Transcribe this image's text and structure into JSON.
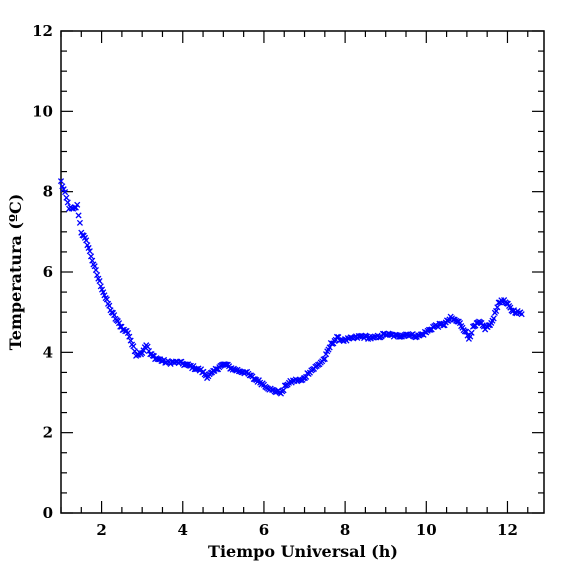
{
  "chart_data": {
    "type": "scatter",
    "title": "",
    "xlabel": "Tiempo Universal (h)",
    "ylabel": "Temperatura (ºC)",
    "xlim": [
      1.0,
      12.9
    ],
    "ylim": [
      0,
      12
    ],
    "xticks": [
      2,
      4,
      6,
      8,
      10,
      12
    ],
    "yticks": [
      0,
      2,
      4,
      6,
      8,
      10,
      12
    ],
    "xtick_labels": [
      "2",
      "4",
      "6",
      "8",
      "10",
      "12"
    ],
    "ytick_labels": [
      "0",
      "2",
      "4",
      "6",
      "8",
      "10",
      "12"
    ],
    "marker": "x",
    "grid": false,
    "legend": "none",
    "series_color": "#0000ff",
    "anchors": [
      [
        1.0,
        8.25
      ],
      [
        1.1,
        7.95
      ],
      [
        1.2,
        7.6
      ],
      [
        1.3,
        7.55
      ],
      [
        1.4,
        7.65
      ],
      [
        1.5,
        7.0
      ],
      [
        1.65,
        6.7
      ],
      [
        1.8,
        6.2
      ],
      [
        1.95,
        5.75
      ],
      [
        2.1,
        5.35
      ],
      [
        2.25,
        5.0
      ],
      [
        2.4,
        4.75
      ],
      [
        2.55,
        4.55
      ],
      [
        2.65,
        4.5
      ],
      [
        2.75,
        4.2
      ],
      [
        2.85,
        3.95
      ],
      [
        3.0,
        4.0
      ],
      [
        3.1,
        4.2
      ],
      [
        3.2,
        3.95
      ],
      [
        3.35,
        3.85
      ],
      [
        3.6,
        3.75
      ],
      [
        3.9,
        3.75
      ],
      [
        4.2,
        3.65
      ],
      [
        4.45,
        3.55
      ],
      [
        4.6,
        3.4
      ],
      [
        4.75,
        3.5
      ],
      [
        4.9,
        3.65
      ],
      [
        5.05,
        3.7
      ],
      [
        5.2,
        3.6
      ],
      [
        5.35,
        3.55
      ],
      [
        5.55,
        3.5
      ],
      [
        5.75,
        3.35
      ],
      [
        6.0,
        3.2
      ],
      [
        6.2,
        3.05
      ],
      [
        6.45,
        3.0
      ],
      [
        6.55,
        3.2
      ],
      [
        6.75,
        3.3
      ],
      [
        6.95,
        3.3
      ],
      [
        7.1,
        3.5
      ],
      [
        7.3,
        3.65
      ],
      [
        7.5,
        3.85
      ],
      [
        7.65,
        4.2
      ],
      [
        7.8,
        4.35
      ],
      [
        8.0,
        4.3
      ],
      [
        8.2,
        4.35
      ],
      [
        8.4,
        4.4
      ],
      [
        8.7,
        4.35
      ],
      [
        9.0,
        4.45
      ],
      [
        9.3,
        4.4
      ],
      [
        9.5,
        4.45
      ],
      [
        9.8,
        4.4
      ],
      [
        10.0,
        4.5
      ],
      [
        10.2,
        4.65
      ],
      [
        10.45,
        4.7
      ],
      [
        10.6,
        4.85
      ],
      [
        10.8,
        4.75
      ],
      [
        10.95,
        4.55
      ],
      [
        11.05,
        4.35
      ],
      [
        11.15,
        4.6
      ],
      [
        11.3,
        4.75
      ],
      [
        11.45,
        4.6
      ],
      [
        11.6,
        4.7
      ],
      [
        11.75,
        5.15
      ],
      [
        11.85,
        5.3
      ],
      [
        11.95,
        5.25
      ],
      [
        12.1,
        5.05
      ],
      [
        12.25,
        5.0
      ],
      [
        12.35,
        4.95
      ]
    ]
  }
}
